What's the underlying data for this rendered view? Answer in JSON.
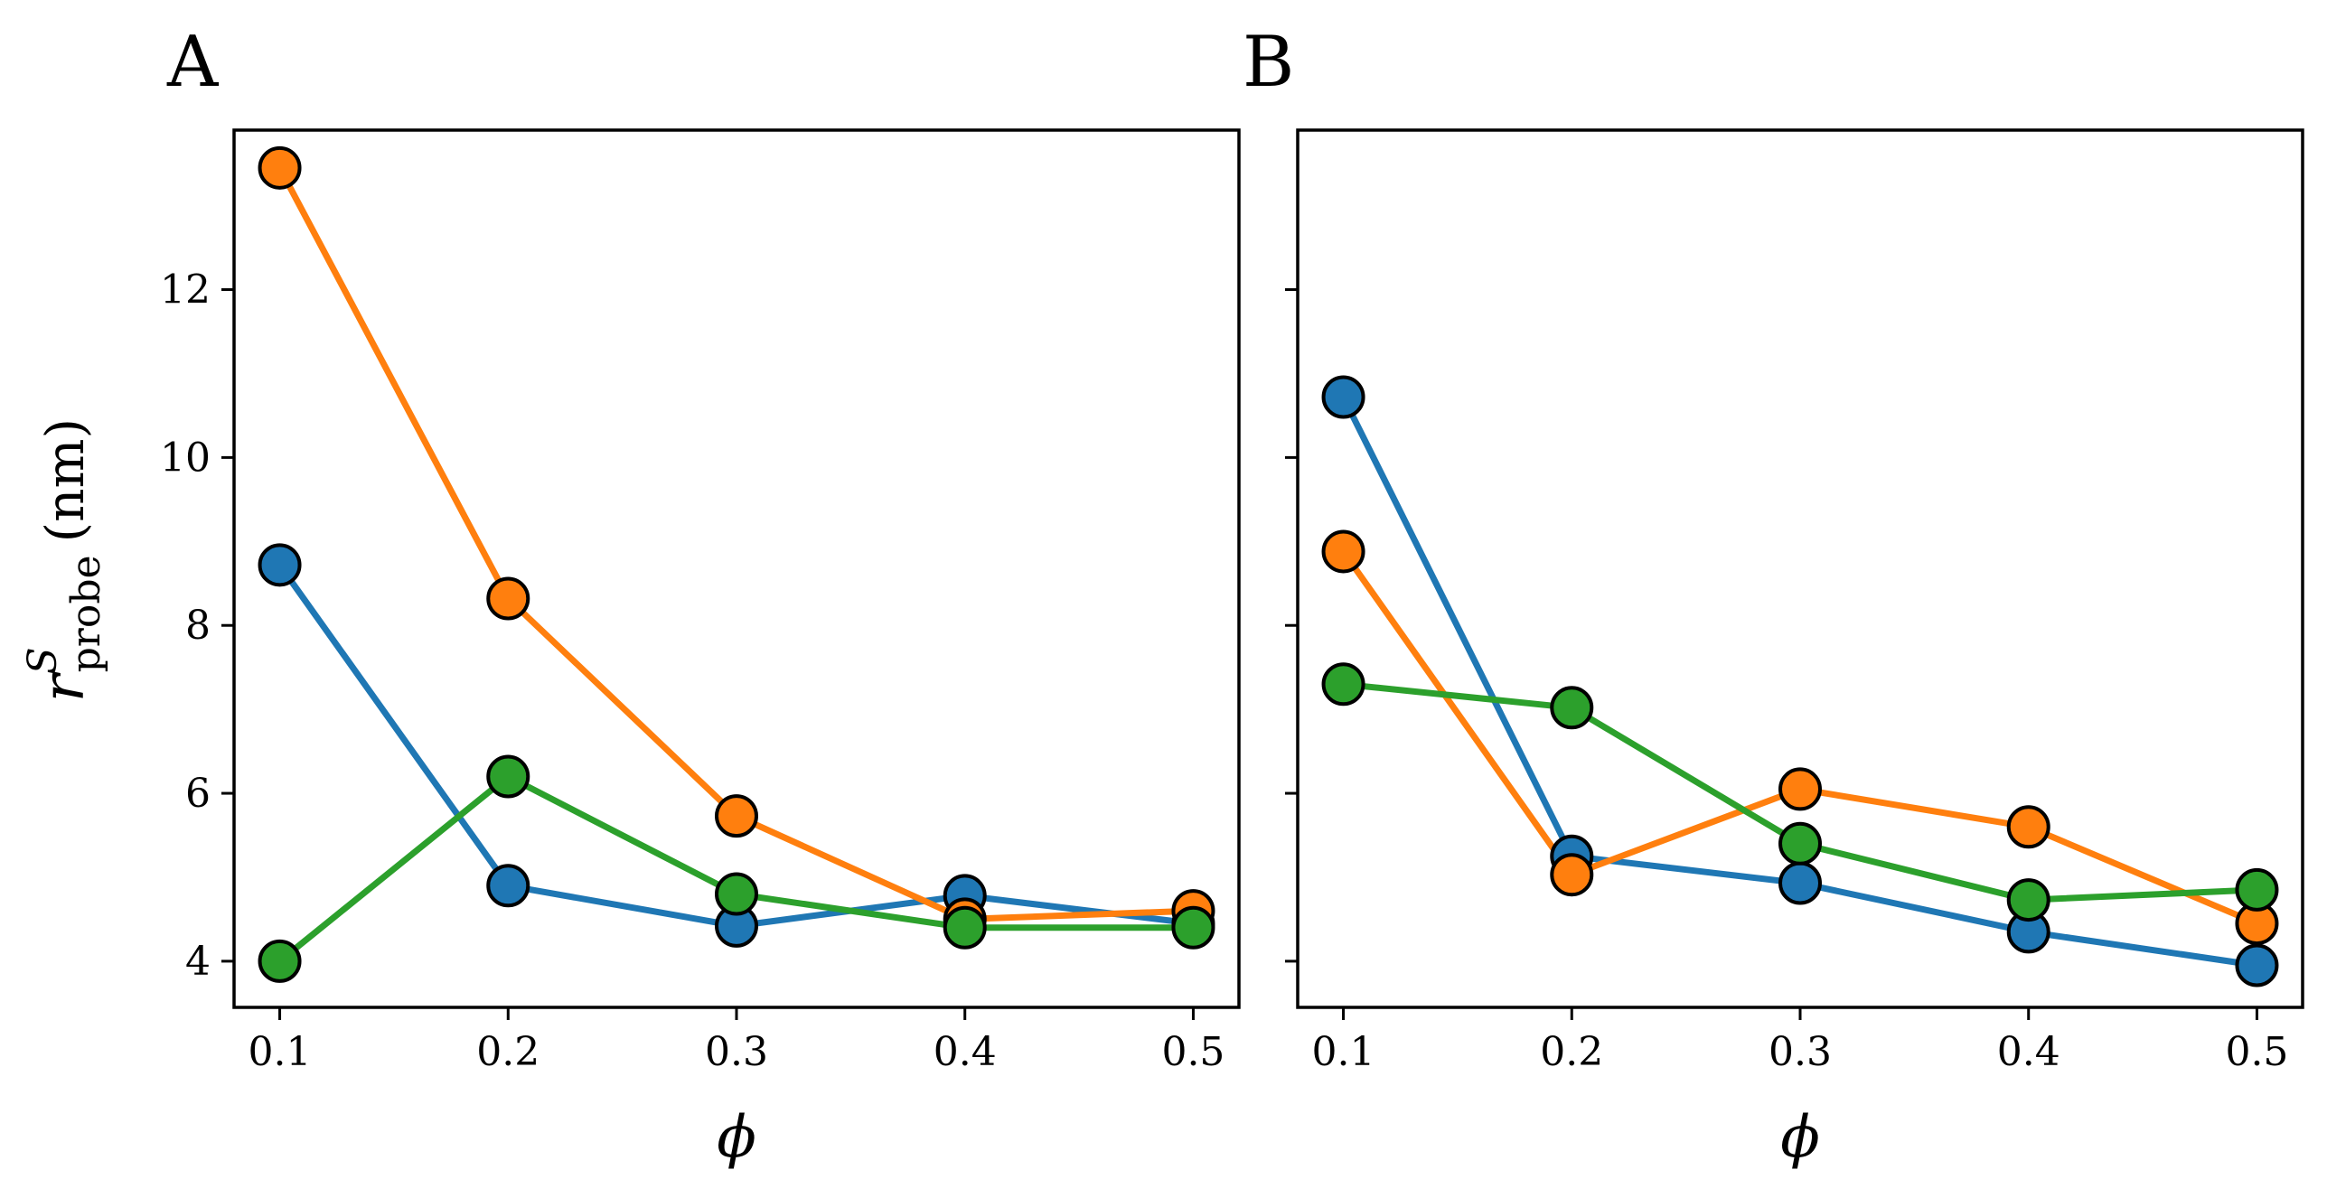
{
  "chart_data": [
    {
      "type": "line",
      "panel_label": "A",
      "title": "",
      "xlabel": "ϕ",
      "ylabel": {
        "base": "r",
        "superscript": "S",
        "subscript": "probe",
        "unit": "(nm)"
      },
      "x": [
        0.1,
        0.2,
        0.3,
        0.4,
        0.5
      ],
      "xticks": [
        "0.1",
        "0.2",
        "0.3",
        "0.4",
        "0.5"
      ],
      "yticks": [
        "4",
        "6",
        "8",
        "10",
        "12"
      ],
      "ylim": [
        3.45,
        13.9
      ],
      "xlim": [
        0.08,
        0.52
      ],
      "series": [
        {
          "name": "blue",
          "color": "#1f77b4",
          "values": [
            8.72,
            4.9,
            4.42,
            4.78,
            4.45
          ]
        },
        {
          "name": "orange",
          "color": "#ff7f0e",
          "values": [
            13.45,
            8.32,
            5.73,
            4.5,
            4.6
          ]
        },
        {
          "name": "green",
          "color": "#2ca02c",
          "values": [
            4.0,
            6.2,
            4.8,
            4.4,
            4.4
          ]
        }
      ]
    },
    {
      "type": "line",
      "panel_label": "B",
      "title": "",
      "xlabel": "ϕ",
      "x": [
        0.1,
        0.2,
        0.3,
        0.4,
        0.5
      ],
      "xticks": [
        "0.1",
        "0.2",
        "0.3",
        "0.4",
        "0.5"
      ],
      "yticks": [
        "4",
        "6",
        "8",
        "10",
        "12"
      ],
      "ylim": [
        3.45,
        13.9
      ],
      "xlim": [
        0.08,
        0.52
      ],
      "series": [
        {
          "name": "blue",
          "color": "#1f77b4",
          "values": [
            10.72,
            5.25,
            4.93,
            4.35,
            3.95
          ]
        },
        {
          "name": "orange",
          "color": "#ff7f0e",
          "values": [
            8.88,
            5.03,
            6.05,
            5.6,
            4.45
          ]
        },
        {
          "name": "green",
          "color": "#2ca02c",
          "values": [
            7.3,
            7.02,
            5.4,
            4.73,
            4.85
          ]
        }
      ]
    }
  ]
}
